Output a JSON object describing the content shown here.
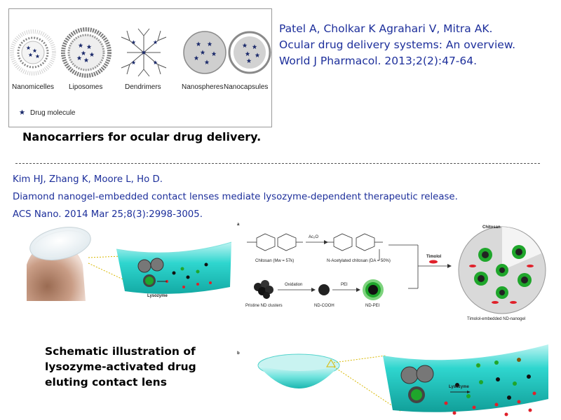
{
  "figure1": {
    "carrier_labels": [
      "Nanomicelles",
      "Liposomes",
      "Dendrimers",
      "Nanospheres",
      "Nanocapsules"
    ],
    "legend_label": "Drug molecule"
  },
  "reference1": {
    "lines": [
      "Patel A, Cholkar K Agrahari V, Mitra AK.",
      "Ocular drug delivery systems: An overview.",
      "World J Pharmacol. 2013;2(2):47-64."
    ]
  },
  "caption1": "Nanocarriers for ocular drug delivery.",
  "reference2": {
    "lines": [
      "Kim HJ, Zhang K, Moore L, Ho D.",
      "Diamond nanogel-embedded contact lenses mediate lysozyme-dependent therapeutic release.",
      "ACS Nano. 2014 Mar 25;8(3):2998-3005."
    ]
  },
  "figure2": {
    "lysozyme_label": "Lysozyme",
    "panel_a_label": "a",
    "panel_b_label": "b",
    "chitosan_label": "Chitosan (Mw = 57k)",
    "acetylated_label": "N-Acetylated chitosan (DA = 50%)",
    "reagent_ac2o": "Ac₂O",
    "timolol_label": "Timolol",
    "chitosan_shell_label": "Chitosan",
    "oxidation_label": "Oxidation",
    "pei_label": "PEI",
    "pristine_label": "Pristine ND clusters",
    "ndcooh_label": "ND-COOH",
    "ndpei_label": "ND-PEI",
    "nanogel_label": "Timolol-embedded ND-nanogel",
    "lysozyme_label_b": "Lysozyme"
  },
  "caption2": {
    "lines": [
      "Schematic illustration of",
      "lysozyme-activated drug",
      "eluting contact lens"
    ]
  },
  "colors": {
    "reference_text": "#1d2f9b",
    "lens_teal": "#2fd6cf",
    "drug_green": "#1fa62b",
    "release_red": "#e0202a",
    "star_navy": "#1b2a6b"
  }
}
